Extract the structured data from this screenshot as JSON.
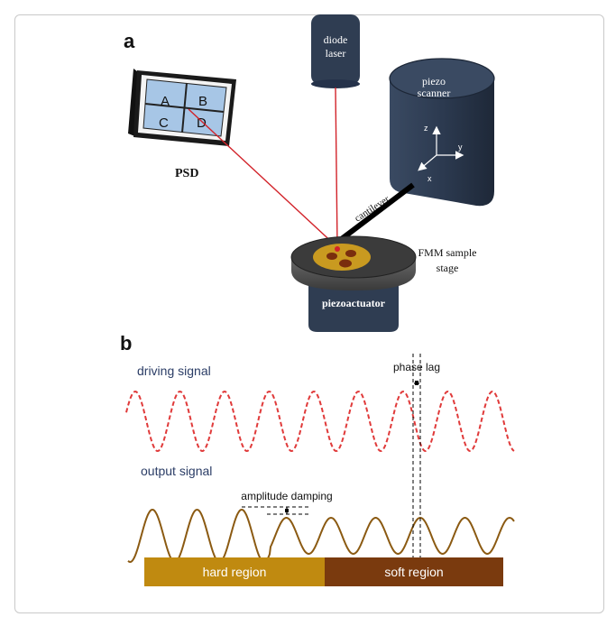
{
  "panel_a": {
    "letter": "a",
    "psd": {
      "label": "PSD",
      "quadrants": [
        "A",
        "B",
        "C",
        "D"
      ]
    },
    "laser": {
      "line1": "diode",
      "line2": "laser"
    },
    "scanner": {
      "line1": "piezo",
      "line2": "scanner"
    },
    "axes": {
      "z": "z",
      "y": "y",
      "x": "x"
    },
    "cantilever": "cantilever",
    "stage": {
      "line1": "FMM sample",
      "line2": "stage"
    },
    "actuator": "piezoactuator"
  },
  "panel_b": {
    "letter": "b",
    "driving_signal": "driving signal",
    "output_signal": "output signal",
    "phase_lag": "phase lag",
    "amplitude_damping": "amplitude damping",
    "hard_region": "hard region",
    "soft_region": "soft region"
  },
  "colors": {
    "laser_beam": "#d2232a",
    "driving_wave": "#e03a3a",
    "output_wave": "#8b5a12",
    "hard_region": "#c08a10",
    "soft_region": "#7a3a0e",
    "scanner": "#2f3d52",
    "psd_face": "#a7c6e6",
    "label_blue": "#2b3d66"
  }
}
